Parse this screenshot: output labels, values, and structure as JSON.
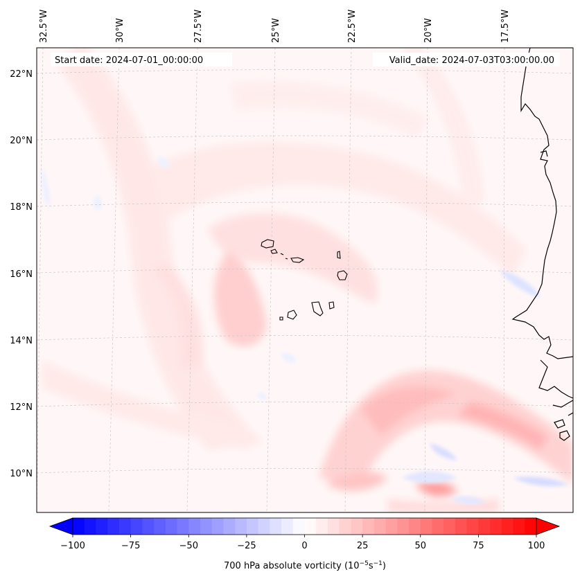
{
  "map": {
    "lon_labels": [
      "32.5°W",
      "30°W",
      "27.5°W",
      "25°W",
      "22.5°W",
      "20°W",
      "17.5°W"
    ],
    "lat_labels": [
      "22°N",
      "20°N",
      "18°N",
      "16°N",
      "14°N",
      "12°N",
      "10°N"
    ],
    "start_date": "Start date: 2024-07-01_00:00:00",
    "valid_date": "Valid_date: 2024-07-03T03:00:00.00",
    "land_outline_color": "#000000",
    "gridline_color": "#c8c8c8"
  },
  "colorbar": {
    "ticks": [
      "−100",
      "−75",
      "−50",
      "−25",
      "0",
      "25",
      "50",
      "75",
      "100"
    ],
    "tick_values": [
      -100,
      -75,
      -50,
      -25,
      0,
      25,
      50,
      75,
      100
    ],
    "min": -100,
    "max": 100,
    "step": 5,
    "cmap": "bwr",
    "label_prefix": "700 hPa absolute vorticity (10",
    "label_exp1": "−5",
    "label_mid": "s",
    "label_exp2": "−1",
    "label_suffix": ")"
  }
}
